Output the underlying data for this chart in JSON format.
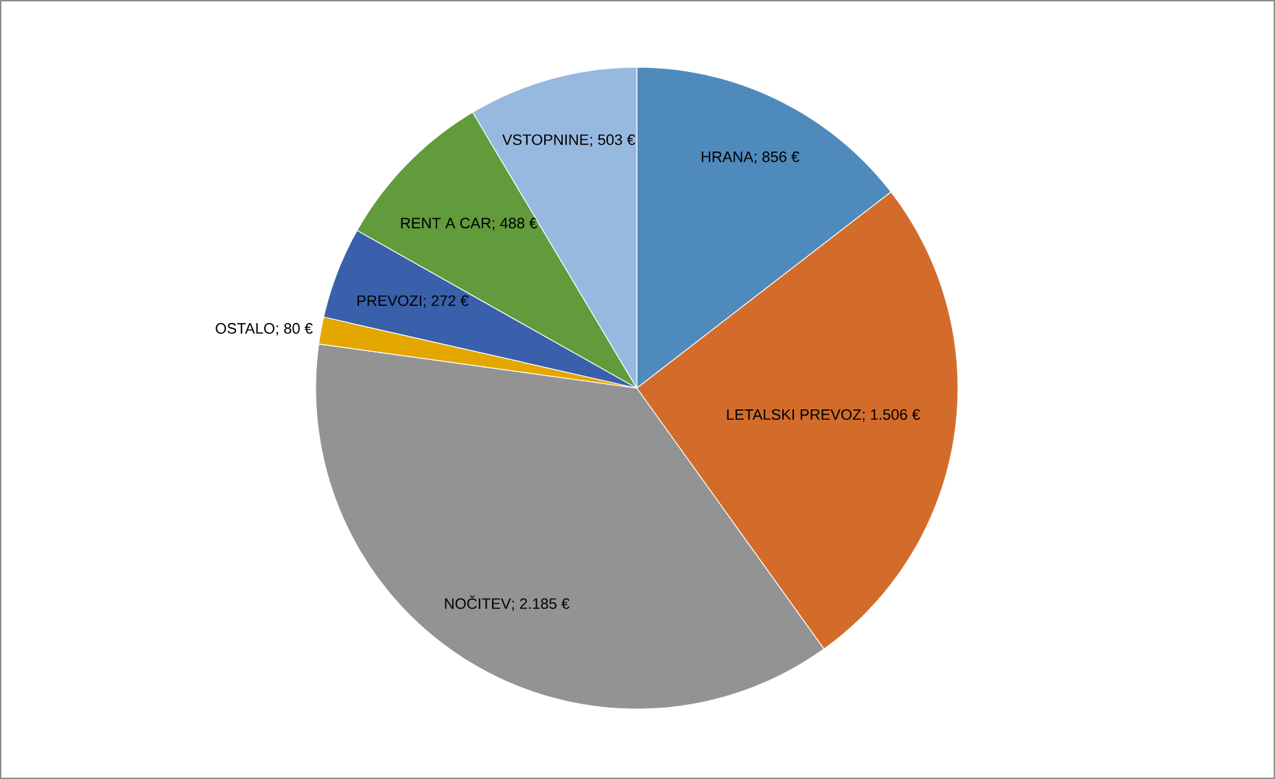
{
  "chart_data": {
    "type": "pie",
    "categories": [
      "HRANA",
      "LETALSKI  PREVOZ",
      "NOČITEV",
      "OSTALO",
      "PREVOZI",
      "RENT  A CAR",
      "VSTOPNINE"
    ],
    "values": [
      856,
      1506,
      2185,
      80,
      272,
      488,
      503
    ],
    "value_labels": [
      ";  856 €",
      ";  1.506 €",
      ";  2.185 €",
      ";  80 €",
      ";  272 €",
      ";  488 €",
      ";  503 €"
    ],
    "colors": [
      "#4f8abd",
      "#d36c2b",
      "#939393",
      "#e3a700",
      "#3a60ab",
      "#619b3c",
      "#98b9df"
    ]
  }
}
